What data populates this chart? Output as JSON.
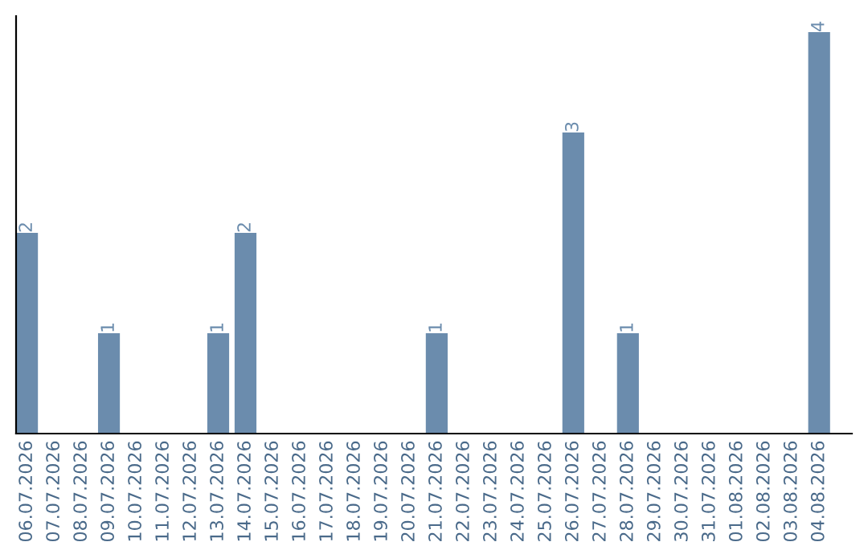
{
  "chart_data": {
    "type": "bar",
    "categories": [
      "06.07.2026",
      "07.07.2026",
      "08.07.2026",
      "09.07.2026",
      "10.07.2026",
      "11.07.2026",
      "12.07.2026",
      "13.07.2026",
      "14.07.2026",
      "15.07.2026",
      "16.07.2026",
      "17.07.2026",
      "18.07.2026",
      "19.07.2026",
      "20.07.2026",
      "21.07.2026",
      "22.07.2026",
      "23.07.2026",
      "24.07.2026",
      "25.07.2026",
      "26.07.2026",
      "27.07.2026",
      "28.07.2026",
      "29.07.2026",
      "30.07.2026",
      "31.07.2026",
      "01.08.2026",
      "02.08.2026",
      "03.08.2026",
      "04.08.2026"
    ],
    "values": [
      2,
      0,
      0,
      1,
      0,
      0,
      0,
      1,
      2,
      0,
      0,
      0,
      0,
      0,
      0,
      1,
      0,
      0,
      0,
      0,
      3,
      0,
      1,
      0,
      0,
      0,
      0,
      0,
      0,
      4
    ],
    "value_labels": [
      "2",
      null,
      null,
      "1",
      null,
      null,
      null,
      "1",
      "2",
      null,
      null,
      null,
      null,
      null,
      null,
      "1",
      null,
      null,
      null,
      null,
      "3",
      null,
      "1",
      null,
      null,
      null,
      null,
      null,
      null,
      "4"
    ],
    "color": "#6b8cad",
    "tick_labels": "x",
    "grid": false,
    "legend": false
  }
}
